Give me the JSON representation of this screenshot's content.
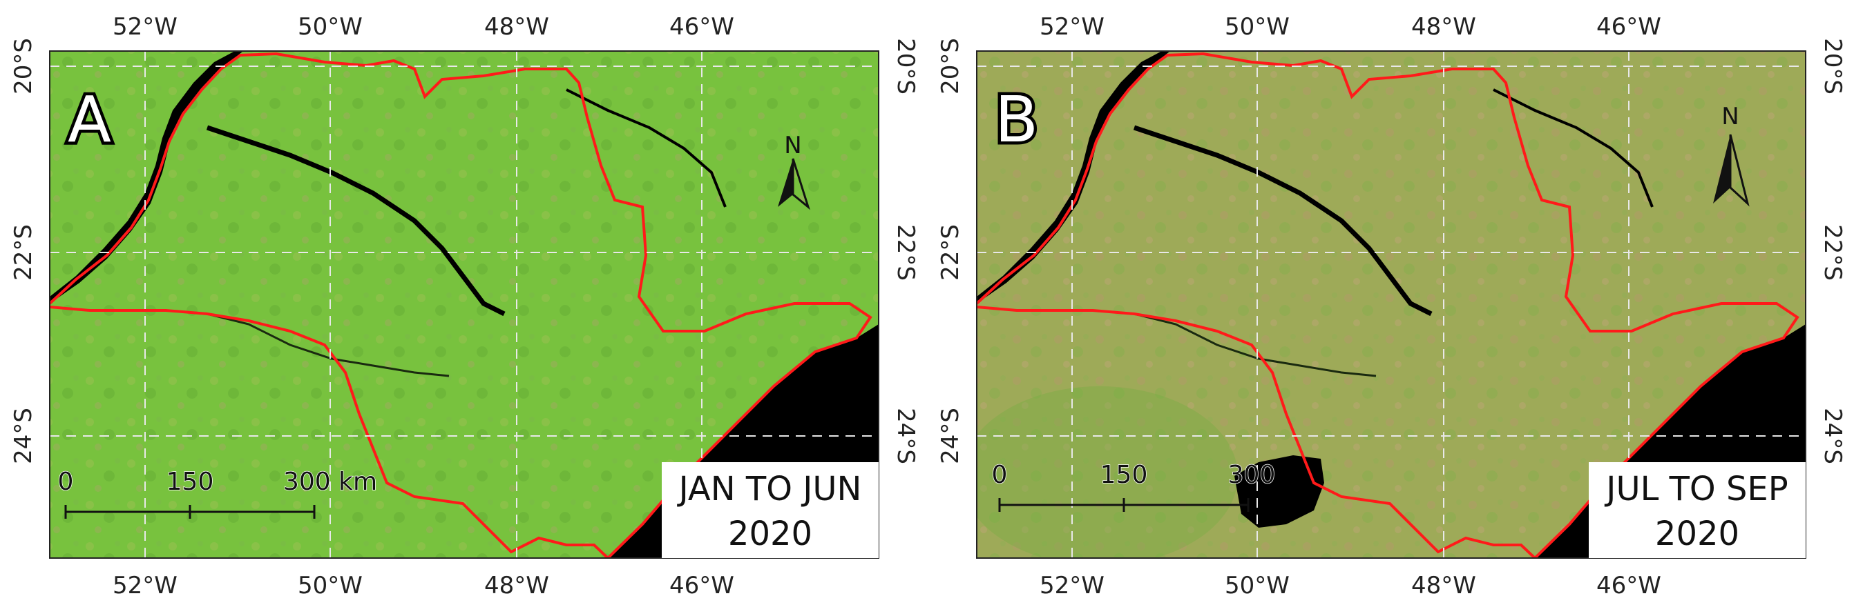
{
  "panels": [
    {
      "id": "a",
      "letter": "A",
      "period_line1": "JAN TO JUN",
      "period_line2": "2020",
      "lon_labels": [
        "52°W",
        "50°W",
        "48°W",
        "46°W"
      ],
      "lat_labels": [
        "20°S",
        "22°S",
        "24°S"
      ],
      "north_label": "N",
      "scale_labels": [
        "0",
        "150",
        "300 km"
      ],
      "land_color": "#78c23e",
      "land_tint": "#8fbf3a"
    },
    {
      "id": "b",
      "letter": "B",
      "period_line1": "JUL TO SEP",
      "period_line2": "2020",
      "lon_labels": [
        "52°W",
        "50°W",
        "48°W",
        "46°W"
      ],
      "lat_labels": [
        "20°S",
        "22°S",
        "24°S"
      ],
      "north_label": "N",
      "scale_labels": [
        "0",
        "150",
        "300"
      ],
      "land_color": "#9eaa58",
      "land_tint": "#b09a62"
    }
  ],
  "colors": {
    "boundary": "#ff1a1a",
    "water": "#000000",
    "grid": "#e8e8e8"
  }
}
